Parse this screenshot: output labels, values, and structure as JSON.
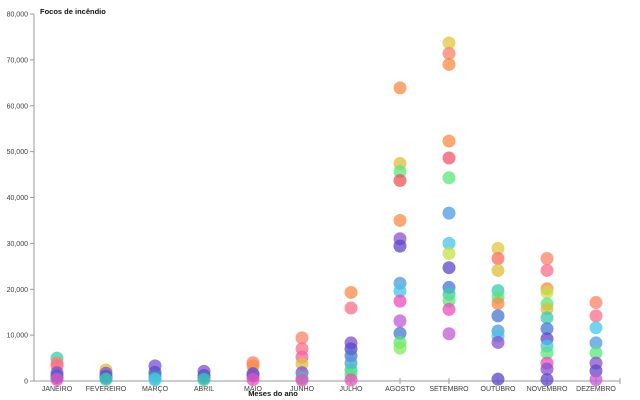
{
  "chart_data": {
    "type": "scatter",
    "title": "Focos de incêndio",
    "xlabel": "Meses do ano",
    "ylabel": "",
    "ylim": [
      0,
      80000
    ],
    "grid": false,
    "legend": "none",
    "y_ticks": [
      0,
      10000,
      20000,
      30000,
      40000,
      50000,
      60000,
      70000,
      80000
    ],
    "y_tick_labels": [
      "0",
      "10,000",
      "20,000",
      "30,000",
      "40,000",
      "50,000",
      "60,000",
      "70,000",
      "80,000"
    ],
    "categories": [
      "JANEIRO",
      "FEVEREIRO",
      "MARÇO",
      "ABRIL",
      "MAIO",
      "JUNHO",
      "JULHO",
      "AGOSTO",
      "SETEMBRO",
      "OUTUBRO",
      "NOVEMBRO",
      "DEZEMBRO"
    ],
    "points": [
      {
        "month": "JANEIRO",
        "dots": [
          {
            "value": 5000,
            "color": "#3EC9AD"
          },
          {
            "value": 3900,
            "color": "#FB8268"
          },
          {
            "value": 3300,
            "color": "#F96E8B"
          },
          {
            "value": 1800,
            "color": "#7A4FD0"
          },
          {
            "value": 1100,
            "color": "#5C47C6"
          },
          {
            "value": 700,
            "color": "#4577D2"
          },
          {
            "value": 300,
            "color": "#E84FBB"
          }
        ]
      },
      {
        "month": "FEVEREIRO",
        "dots": [
          {
            "value": 2400,
            "color": "#DDBE3D"
          },
          {
            "value": 1700,
            "color": "#7A4FD0"
          },
          {
            "value": 1000,
            "color": "#5C47C6"
          },
          {
            "value": 600,
            "color": "#4577D2"
          },
          {
            "value": 350,
            "color": "#3EC9AD"
          }
        ]
      },
      {
        "month": "MARÇO",
        "dots": [
          {
            "value": 3300,
            "color": "#7A4FD0"
          },
          {
            "value": 1900,
            "color": "#5C47C6"
          },
          {
            "value": 1100,
            "color": "#4577D2"
          },
          {
            "value": 500,
            "color": "#3EC9AD"
          },
          {
            "value": 250,
            "color": "#45C5E8"
          }
        ]
      },
      {
        "month": "ABRIL",
        "dots": [
          {
            "value": 2100,
            "color": "#7A4FD0"
          },
          {
            "value": 1200,
            "color": "#5C47C6"
          },
          {
            "value": 600,
            "color": "#4577D2"
          },
          {
            "value": 300,
            "color": "#3EC9AD"
          }
        ]
      },
      {
        "month": "MAIO",
        "dots": [
          {
            "value": 4000,
            "color": "#FB8268"
          },
          {
            "value": 3300,
            "color": "#F98B45"
          },
          {
            "value": 1600,
            "color": "#5C47C6"
          },
          {
            "value": 1100,
            "color": "#7A4FD0"
          },
          {
            "value": 300,
            "color": "#E84FBB"
          }
        ]
      },
      {
        "month": "JUNHO",
        "dots": [
          {
            "value": 9400,
            "color": "#FB8268"
          },
          {
            "value": 7000,
            "color": "#F96E8B"
          },
          {
            "value": 5200,
            "color": "#F4619E"
          },
          {
            "value": 3700,
            "color": "#DDBE3D"
          },
          {
            "value": 1800,
            "color": "#7A4FD0"
          },
          {
            "value": 600,
            "color": "#3EC9AD"
          },
          {
            "value": 200,
            "color": "#E84FBB"
          }
        ]
      },
      {
        "month": "JULHO",
        "dots": [
          {
            "value": 19300,
            "color": "#F98B45"
          },
          {
            "value": 15900,
            "color": "#F96E8B"
          },
          {
            "value": 8300,
            "color": "#7A4FD0"
          },
          {
            "value": 7000,
            "color": "#5C47C6"
          },
          {
            "value": 5500,
            "color": "#4577D2"
          },
          {
            "value": 3900,
            "color": "#4D9BDD"
          },
          {
            "value": 2400,
            "color": "#3EC9AD"
          },
          {
            "value": 1400,
            "color": "#5CE47C"
          },
          {
            "value": 250,
            "color": "#E84FBB"
          }
        ]
      },
      {
        "month": "AGOSTO",
        "dots": [
          {
            "value": 63900,
            "color": "#F98B45"
          },
          {
            "value": 47400,
            "color": "#DDBE3D"
          },
          {
            "value": 45600,
            "color": "#5CE47C"
          },
          {
            "value": 43700,
            "color": "#F25359"
          },
          {
            "value": 35000,
            "color": "#F98B45"
          },
          {
            "value": 31000,
            "color": "#8A52D0"
          },
          {
            "value": 29400,
            "color": "#5C47C6"
          },
          {
            "value": 21300,
            "color": "#4D9BDD"
          },
          {
            "value": 19600,
            "color": "#45C5E8"
          },
          {
            "value": 17400,
            "color": "#E84FBB"
          },
          {
            "value": 13100,
            "color": "#C35AD6"
          },
          {
            "value": 10400,
            "color": "#4577D2"
          },
          {
            "value": 8400,
            "color": "#5CE47C"
          },
          {
            "value": 7200,
            "color": "#7FEB5F"
          }
        ]
      },
      {
        "month": "SETEMBRO",
        "dots": [
          {
            "value": 73700,
            "color": "#E2C73F"
          },
          {
            "value": 71400,
            "color": "#FB8268"
          },
          {
            "value": 69000,
            "color": "#F98B45"
          },
          {
            "value": 52300,
            "color": "#F98B45"
          },
          {
            "value": 48600,
            "color": "#F2566E"
          },
          {
            "value": 44300,
            "color": "#5CE47C"
          },
          {
            "value": 36600,
            "color": "#4D9BDD"
          },
          {
            "value": 30000,
            "color": "#45C5E8"
          },
          {
            "value": 27800,
            "color": "#C4E24A"
          },
          {
            "value": 24700,
            "color": "#5C47C6"
          },
          {
            "value": 20400,
            "color": "#4577D2"
          },
          {
            "value": 18900,
            "color": "#3EC9AD"
          },
          {
            "value": 17400,
            "color": "#5CE47C"
          },
          {
            "value": 15600,
            "color": "#E84FBB"
          },
          {
            "value": 10300,
            "color": "#C35AD6"
          }
        ]
      },
      {
        "month": "OUTUBRO",
        "dots": [
          {
            "value": 28900,
            "color": "#E2C73F"
          },
          {
            "value": 26700,
            "color": "#FB6E5E"
          },
          {
            "value": 24100,
            "color": "#DDBE3D"
          },
          {
            "value": 19700,
            "color": "#3EC9AD"
          },
          {
            "value": 18200,
            "color": "#5CE47C"
          },
          {
            "value": 16900,
            "color": "#F98B45"
          },
          {
            "value": 14200,
            "color": "#4577D2"
          },
          {
            "value": 10900,
            "color": "#4D9BDD"
          },
          {
            "value": 9800,
            "color": "#45C5E8"
          },
          {
            "value": 8400,
            "color": "#8A52D0"
          },
          {
            "value": 400,
            "color": "#5C47C6"
          }
        ]
      },
      {
        "month": "NOVEMBRO",
        "dots": [
          {
            "value": 26700,
            "color": "#FB8268"
          },
          {
            "value": 24100,
            "color": "#F96E8B"
          },
          {
            "value": 20100,
            "color": "#F98B45"
          },
          {
            "value": 19300,
            "color": "#C4E24A"
          },
          {
            "value": 16800,
            "color": "#5CE47C"
          },
          {
            "value": 15700,
            "color": "#DDBE3D"
          },
          {
            "value": 13800,
            "color": "#3EC9AD"
          },
          {
            "value": 11400,
            "color": "#4577D2"
          },
          {
            "value": 9200,
            "color": "#5C47C6"
          },
          {
            "value": 7600,
            "color": "#45C5E8"
          },
          {
            "value": 6100,
            "color": "#5CE47C"
          },
          {
            "value": 3900,
            "color": "#E84FBB"
          },
          {
            "value": 2600,
            "color": "#8A52D0"
          },
          {
            "value": 300,
            "color": "#5C47C6"
          }
        ]
      },
      {
        "month": "DEZEMBRO",
        "dots": [
          {
            "value": 17100,
            "color": "#FB8268"
          },
          {
            "value": 14200,
            "color": "#F96E8B"
          },
          {
            "value": 11600,
            "color": "#45C5E8"
          },
          {
            "value": 8300,
            "color": "#4D9BDD"
          },
          {
            "value": 6100,
            "color": "#5CE47C"
          },
          {
            "value": 3900,
            "color": "#8A52D0"
          },
          {
            "value": 2200,
            "color": "#5C47C6"
          },
          {
            "value": 300,
            "color": "#C35AD6"
          }
        ]
      }
    ]
  }
}
